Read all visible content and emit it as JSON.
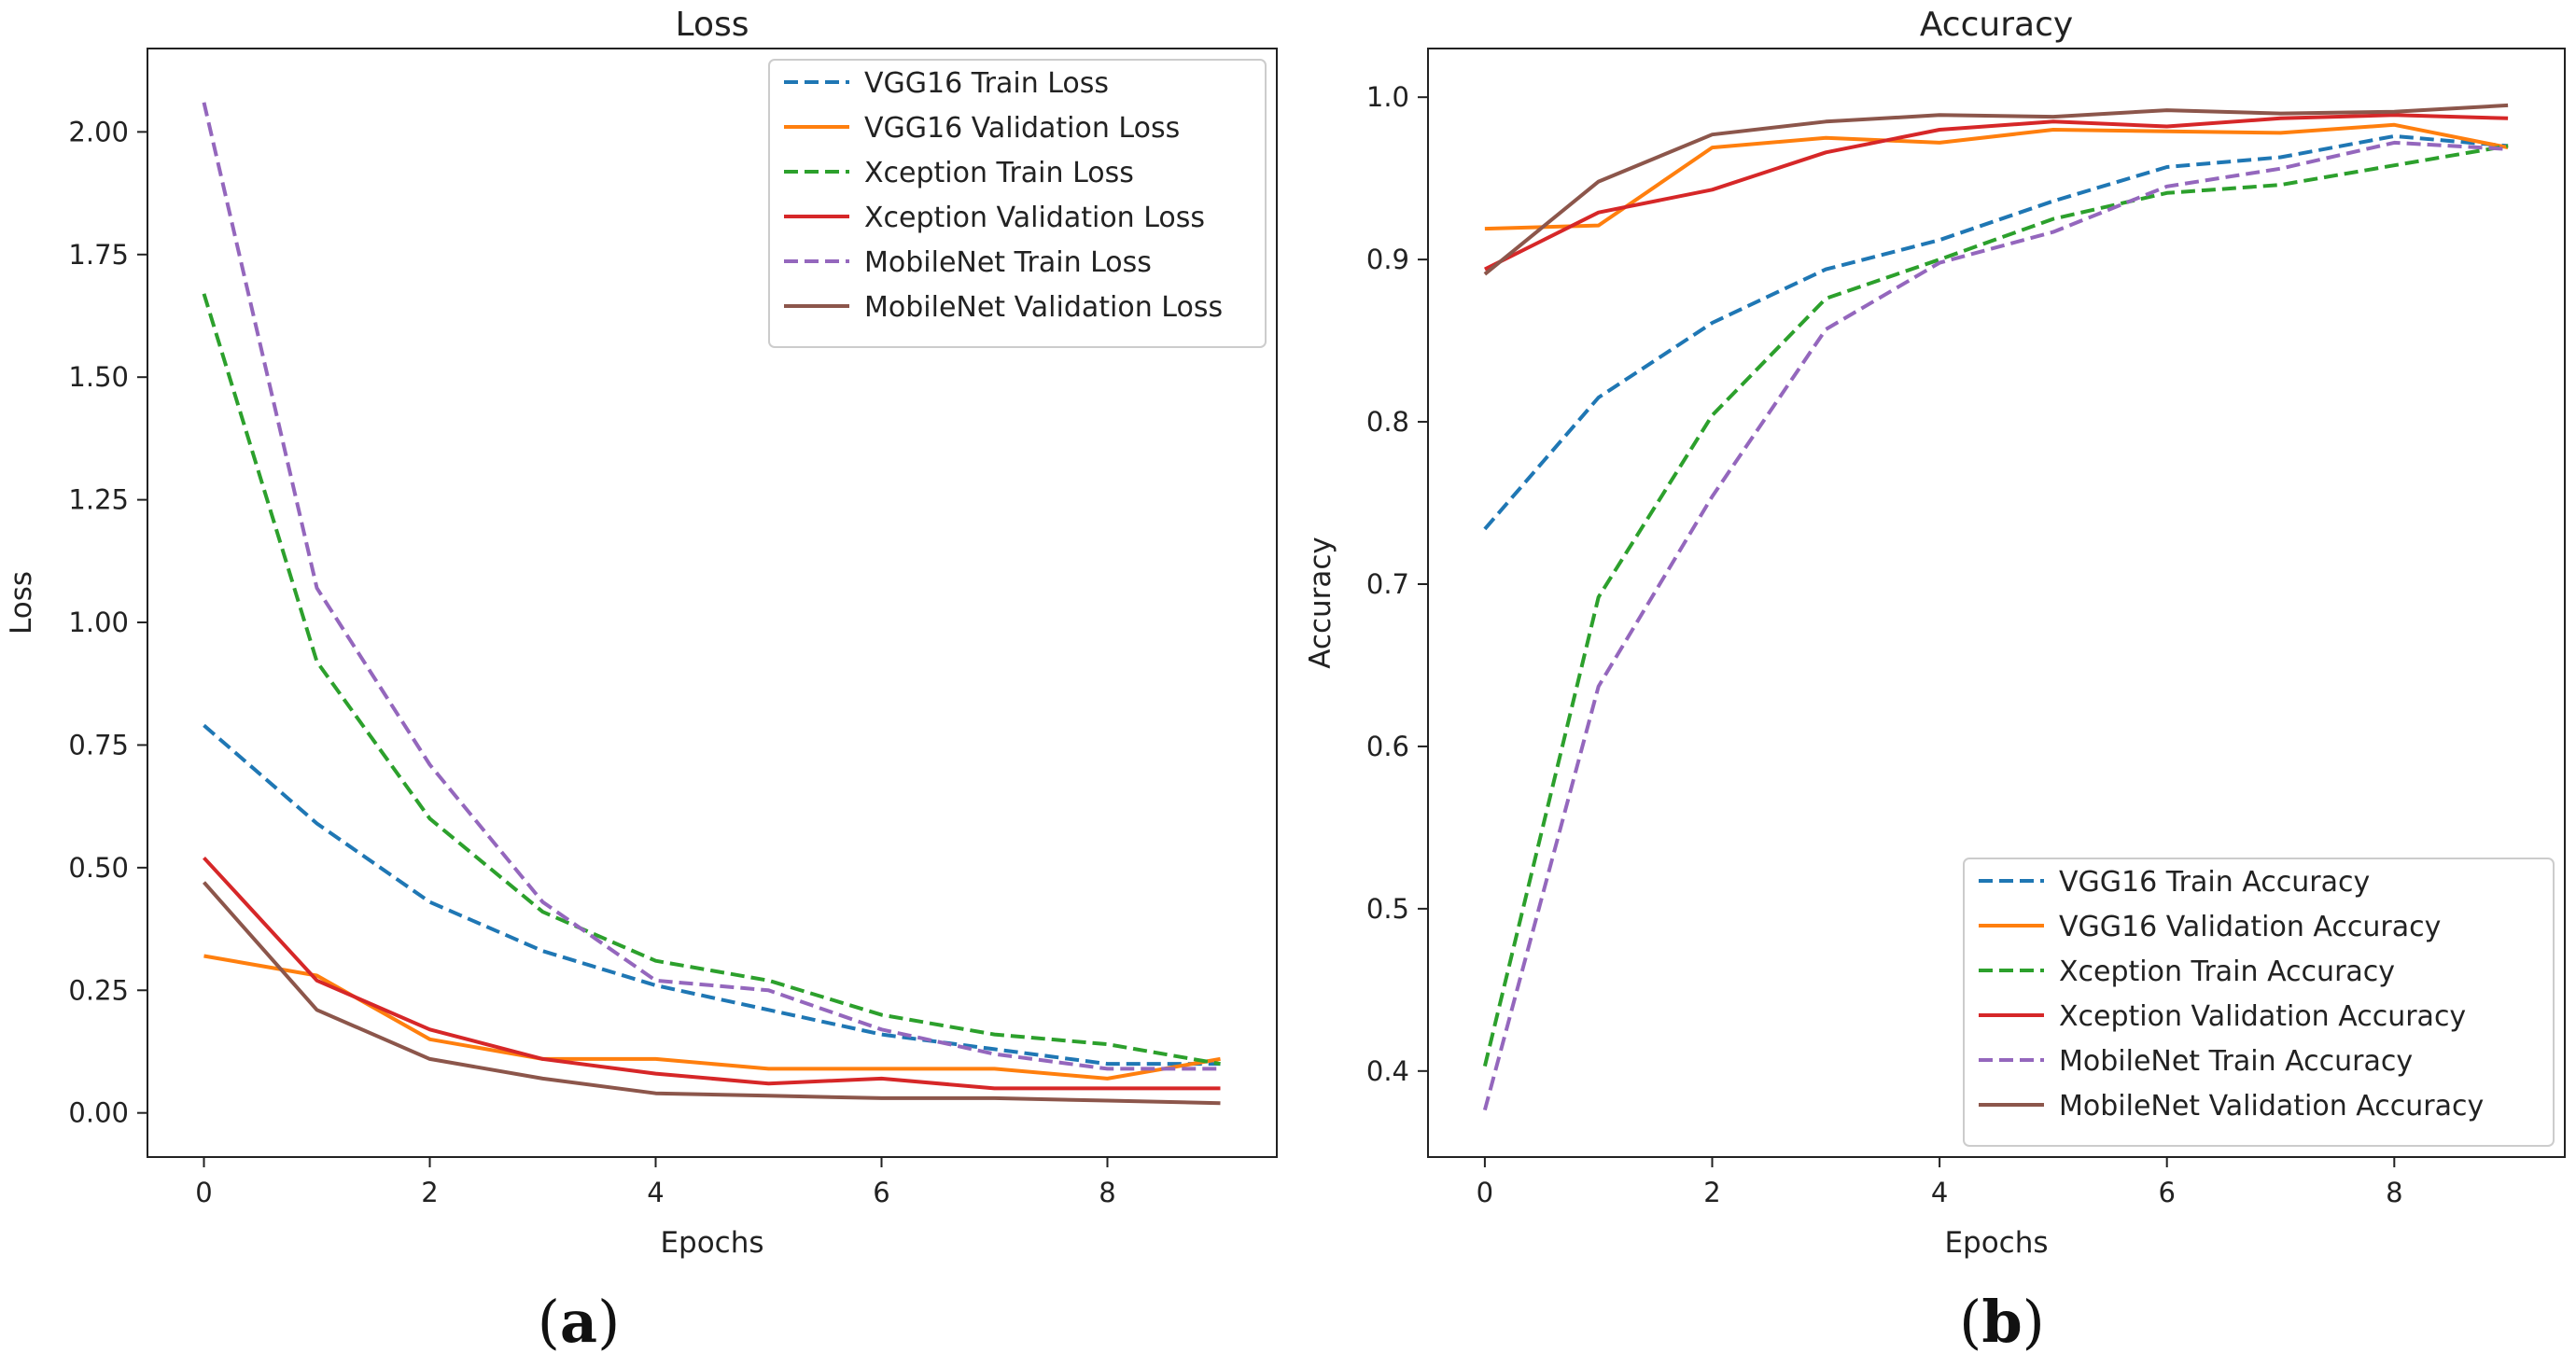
{
  "chart_data": [
    {
      "type": "line",
      "title": "Loss",
      "xlabel": "Epochs",
      "ylabel": "Loss",
      "panel_label": "(a)",
      "panel_letter": "a",
      "xlim": [
        -0.5,
        9.5
      ],
      "ylim": [
        -0.09,
        2.17
      ],
      "xticks": [
        0,
        2,
        4,
        6,
        8
      ],
      "yticks": [
        0.0,
        0.25,
        0.5,
        0.75,
        1.0,
        1.25,
        1.5,
        1.75,
        2.0
      ],
      "ytick_labels": [
        "0.00",
        "0.25",
        "0.50",
        "0.75",
        "1.00",
        "1.25",
        "1.50",
        "1.75",
        "2.00"
      ],
      "legend_position": "top-right",
      "x": [
        0,
        1,
        2,
        3,
        4,
        5,
        6,
        7,
        8,
        9
      ],
      "series": [
        {
          "name": "VGG16 Train Loss",
          "color": "#1f77b4",
          "dashed": true,
          "values": [
            0.79,
            0.59,
            0.43,
            0.33,
            0.26,
            0.21,
            0.16,
            0.13,
            0.1,
            0.1
          ]
        },
        {
          "name": "VGG16 Validation Loss",
          "color": "#ff7f0e",
          "dashed": false,
          "values": [
            0.32,
            0.28,
            0.15,
            0.11,
            0.11,
            0.09,
            0.09,
            0.09,
            0.07,
            0.11
          ]
        },
        {
          "name": "Xception Train Loss",
          "color": "#2ca02c",
          "dashed": true,
          "values": [
            1.67,
            0.92,
            0.6,
            0.41,
            0.31,
            0.27,
            0.2,
            0.16,
            0.14,
            0.1
          ]
        },
        {
          "name": "Xception Validation Loss",
          "color": "#d62728",
          "dashed": false,
          "values": [
            0.52,
            0.27,
            0.17,
            0.11,
            0.08,
            0.06,
            0.07,
            0.05,
            0.05,
            0.05
          ]
        },
        {
          "name": "MobileNet Train Loss",
          "color": "#9467bd",
          "dashed": true,
          "values": [
            2.06,
            1.07,
            0.71,
            0.43,
            0.27,
            0.25,
            0.17,
            0.12,
            0.09,
            0.09
          ]
        },
        {
          "name": "MobileNet Validation Loss",
          "color": "#8c564b",
          "dashed": false,
          "values": [
            0.47,
            0.21,
            0.11,
            0.07,
            0.04,
            0.035,
            0.03,
            0.03,
            0.025,
            0.02
          ]
        }
      ]
    },
    {
      "type": "line",
      "title": "Accuracy",
      "xlabel": "Epochs",
      "ylabel": "Accuracy",
      "panel_label": "(b)",
      "panel_letter": "b",
      "xlim": [
        -0.5,
        9.5
      ],
      "ylim": [
        0.347,
        1.03
      ],
      "xticks": [
        0,
        2,
        4,
        6,
        8
      ],
      "yticks": [
        0.4,
        0.5,
        0.6,
        0.7,
        0.8,
        0.9,
        1.0
      ],
      "ytick_labels": [
        "0.4",
        "0.5",
        "0.6",
        "0.7",
        "0.8",
        "0.9",
        "1.0"
      ],
      "legend_position": "bottom-right",
      "x": [
        0,
        1,
        2,
        3,
        4,
        5,
        6,
        7,
        8,
        9
      ],
      "series": [
        {
          "name": "VGG16 Train Accuracy",
          "color": "#1f77b4",
          "dashed": true,
          "values": [
            0.734,
            0.815,
            0.861,
            0.894,
            0.912,
            0.936,
            0.957,
            0.963,
            0.976,
            0.97
          ]
        },
        {
          "name": "VGG16 Validation Accuracy",
          "color": "#ff7f0e",
          "dashed": false,
          "values": [
            0.919,
            0.921,
            0.969,
            0.975,
            0.972,
            0.98,
            0.979,
            0.978,
            0.983,
            0.969
          ]
        },
        {
          "name": "Xception Train Accuracy",
          "color": "#2ca02c",
          "dashed": true,
          "values": [
            0.403,
            0.692,
            0.804,
            0.876,
            0.9,
            0.925,
            0.941,
            0.946,
            0.958,
            0.97
          ]
        },
        {
          "name": "Xception Validation Accuracy",
          "color": "#d62728",
          "dashed": false,
          "values": [
            0.894,
            0.929,
            0.943,
            0.966,
            0.98,
            0.985,
            0.982,
            0.987,
            0.989,
            0.987
          ]
        },
        {
          "name": "MobileNet Train Accuracy",
          "color": "#9467bd",
          "dashed": true,
          "values": [
            0.376,
            0.637,
            0.754,
            0.857,
            0.898,
            0.917,
            0.945,
            0.956,
            0.972,
            0.968
          ]
        },
        {
          "name": "MobileNet Validation Accuracy",
          "color": "#8c564b",
          "dashed": false,
          "values": [
            0.891,
            0.948,
            0.977,
            0.985,
            0.989,
            0.988,
            0.992,
            0.99,
            0.991,
            0.995
          ]
        }
      ]
    }
  ]
}
